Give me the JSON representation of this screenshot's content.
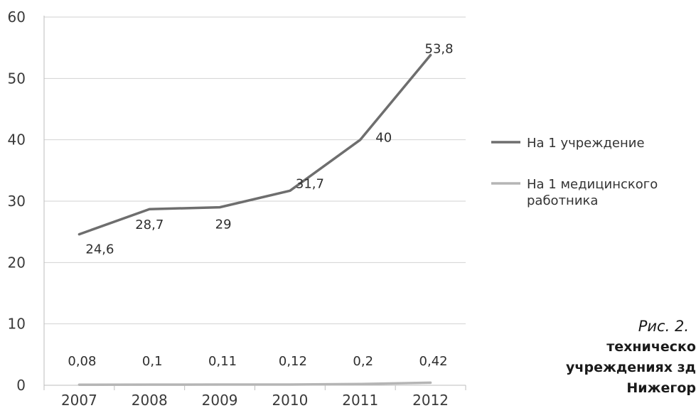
{
  "chart_data": {
    "type": "line",
    "categories": [
      "2007",
      "2008",
      "2009",
      "2010",
      "2011",
      "2012"
    ],
    "ylim": [
      0,
      60
    ],
    "yticks": [
      0,
      10,
      20,
      30,
      40,
      50,
      60
    ],
    "ytick_labels": [
      "0",
      "10",
      "20",
      "30",
      "40",
      "50",
      "60"
    ],
    "grid": true,
    "legend_position": "right",
    "series": [
      {
        "name": "На 1 учреждение",
        "values": [
          24.6,
          28.7,
          29,
          31.7,
          40,
          53.8
        ],
        "labels": [
          "24,6",
          "28,7",
          "29",
          "31,7",
          "40",
          "53,8"
        ],
        "color": "#6e6e6e"
      },
      {
        "name": "На 1 медицинского работника",
        "name_lines": [
          "На 1 медицинского",
          "работника"
        ],
        "values": [
          0.08,
          0.1,
          0.11,
          0.12,
          0.2,
          0.42
        ],
        "labels": [
          "0,08",
          "0,1",
          "0,11",
          "0,12",
          "0,2",
          "0,42"
        ],
        "color": "#b5b5b5"
      }
    ]
  },
  "caption": {
    "line1": "Рис. 2.",
    "line2": "техническо",
    "line3": "учреждениях зд",
    "line4": "Нижегор"
  }
}
